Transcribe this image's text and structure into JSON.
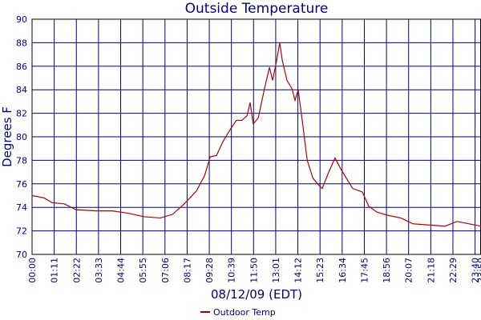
{
  "chart_data": {
    "type": "line",
    "title": "Outside Temperature",
    "xlabel": "08/12/09 (EDT)",
    "ylabel": "Degrees F",
    "x": [
      0,
      39,
      64,
      103,
      141,
      206,
      257,
      308,
      360,
      411,
      450,
      488,
      527,
      553,
      571,
      591,
      612,
      637,
      655,
      673,
      689,
      699,
      709,
      725,
      745,
      761,
      771,
      784,
      794,
      802,
      817,
      833,
      843,
      853,
      866,
      882,
      900,
      915,
      930,
      951,
      971,
      989,
      1007,
      1028,
      1059,
      1079,
      1105,
      1144,
      1182,
      1221,
      1272,
      1324,
      1362,
      1401,
      1439
    ],
    "series": [
      {
        "name": "Outdoor Temp",
        "color": "#b00000",
        "values": [
          75.0,
          74.8,
          74.4,
          74.3,
          73.8,
          73.7,
          73.7,
          73.5,
          73.2,
          73.1,
          73.4,
          74.3,
          75.4,
          76.7,
          78.3,
          78.4,
          79.6,
          80.7,
          81.4,
          81.4,
          81.8,
          82.9,
          81.1,
          81.6,
          84.1,
          85.9,
          84.8,
          86.5,
          88.0,
          86.5,
          84.8,
          84.1,
          83.1,
          84.0,
          81.4,
          78.0,
          76.5,
          76.0,
          75.6,
          77.0,
          78.2,
          77.3,
          76.5,
          75.6,
          75.3,
          74.1,
          73.6,
          73.3,
          73.1,
          72.6,
          72.5,
          72.4,
          72.8,
          72.6,
          72.4
        ]
      }
    ],
    "xlim": [
      0,
      1439
    ],
    "xticks": [
      {
        "value": 0,
        "label": "00:00"
      },
      {
        "value": 71,
        "label": "01:11"
      },
      {
        "value": 142,
        "label": "02:22"
      },
      {
        "value": 213,
        "label": "03:33"
      },
      {
        "value": 284,
        "label": "04:44"
      },
      {
        "value": 355,
        "label": "05:55"
      },
      {
        "value": 426,
        "label": "07:06"
      },
      {
        "value": 497,
        "label": "08:17"
      },
      {
        "value": 568,
        "label": "09:28"
      },
      {
        "value": 639,
        "label": "10:39"
      },
      {
        "value": 710,
        "label": "11:50"
      },
      {
        "value": 781,
        "label": "13:01"
      },
      {
        "value": 852,
        "label": "14:12"
      },
      {
        "value": 923,
        "label": "15:23"
      },
      {
        "value": 994,
        "label": "16:34"
      },
      {
        "value": 1065,
        "label": "17:45"
      },
      {
        "value": 1136,
        "label": "18:56"
      },
      {
        "value": 1207,
        "label": "20:07"
      },
      {
        "value": 1278,
        "label": "21:18"
      },
      {
        "value": 1349,
        "label": "22:29"
      },
      {
        "value": 1420,
        "label": "23:40"
      },
      {
        "value": 1439,
        "label": "23:59"
      }
    ],
    "ylim": [
      70,
      90
    ],
    "yticks": [
      70,
      72,
      74,
      76,
      78,
      80,
      82,
      84,
      86,
      88,
      90
    ],
    "grid": true,
    "legend": "bottom"
  }
}
